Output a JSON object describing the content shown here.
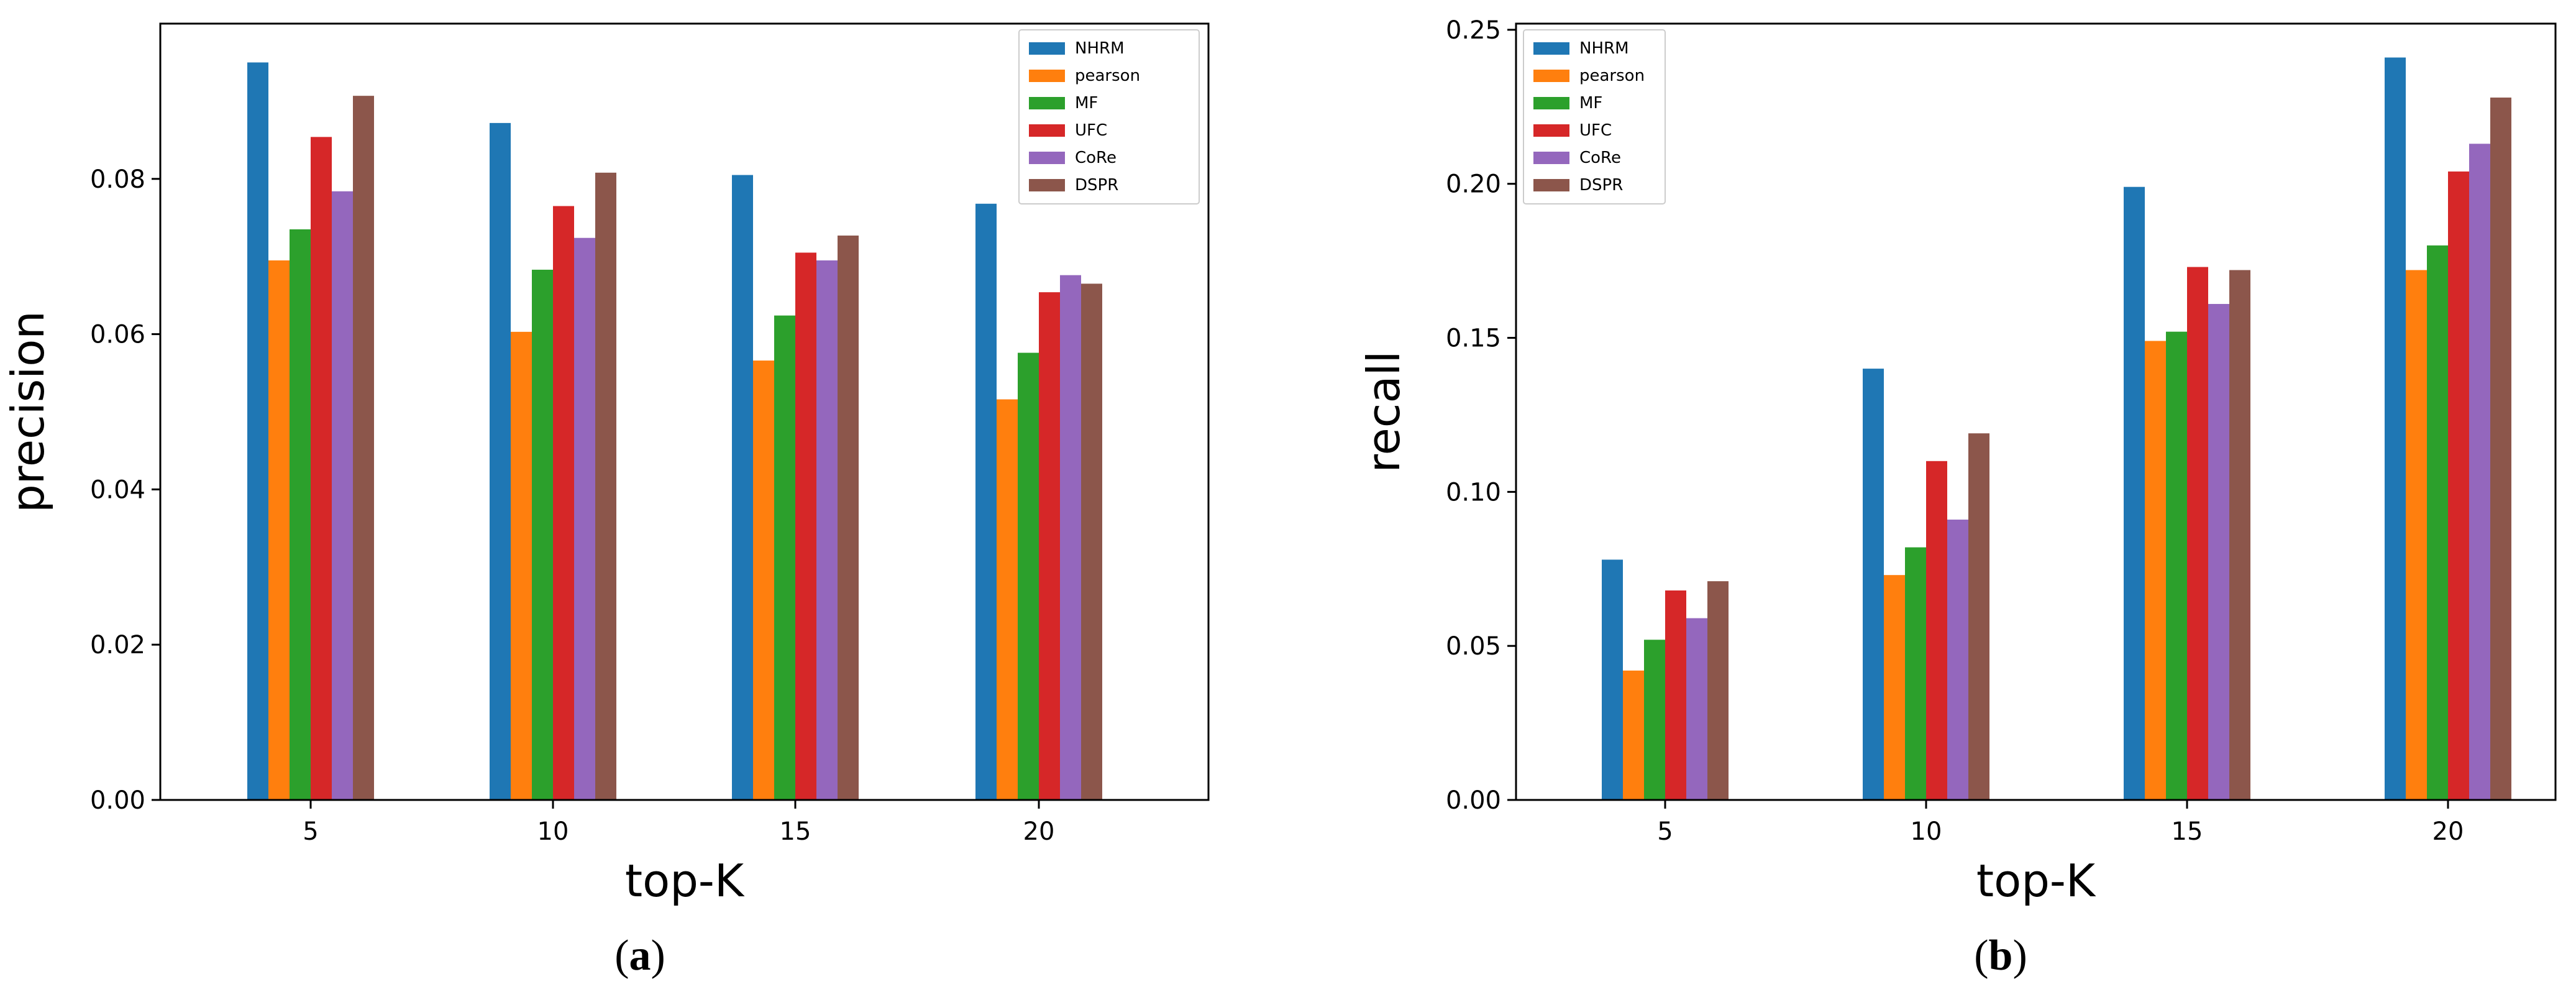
{
  "chart_data": [
    {
      "type": "bar",
      "panel": "a",
      "caption_open": "(",
      "caption_letter": "a",
      "caption_close": ")",
      "xlabel": "top-K",
      "ylabel": "precision",
      "categories": [
        "5",
        "10",
        "15",
        "20"
      ],
      "ylim": [
        0,
        0.1
      ],
      "yticks": [
        0.0,
        0.02,
        0.04,
        0.06,
        0.08
      ],
      "ytick_labels": [
        "0.00",
        "0.02",
        "0.04",
        "0.06",
        "0.08"
      ],
      "legend_position": "top-right",
      "series": [
        {
          "name": "NHRM",
          "color": "#1f77b4",
          "values": [
            0.095,
            0.0872,
            0.0805,
            0.0768
          ]
        },
        {
          "name": "pearson",
          "color": "#ff7f0e",
          "values": [
            0.0695,
            0.0603,
            0.0566,
            0.0516
          ]
        },
        {
          "name": "MF",
          "color": "#2ca02c",
          "values": [
            0.0735,
            0.0683,
            0.0624,
            0.0576
          ]
        },
        {
          "name": "UFC",
          "color": "#d62728",
          "values": [
            0.0854,
            0.0765,
            0.0705,
            0.0654
          ]
        },
        {
          "name": "CoRe",
          "color": "#9467bd",
          "values": [
            0.0784,
            0.0724,
            0.0695,
            0.0676
          ]
        },
        {
          "name": "DSPR",
          "color": "#8c564b",
          "values": [
            0.0907,
            0.0808,
            0.0727,
            0.0665
          ]
        }
      ]
    },
    {
      "type": "bar",
      "panel": "b",
      "caption_open": "(",
      "caption_letter": "b",
      "caption_close": ")",
      "xlabel": "top-K",
      "ylabel": "recall",
      "categories": [
        "5",
        "10",
        "15",
        "20"
      ],
      "ylim": [
        0,
        0.252
      ],
      "yticks": [
        0.0,
        0.05,
        0.1,
        0.15,
        0.2,
        0.25
      ],
      "ytick_labels": [
        "0.00",
        "0.05",
        "0.10",
        "0.15",
        "0.20",
        "0.25"
      ],
      "legend_position": "top-left",
      "series": [
        {
          "name": "NHRM",
          "color": "#1f77b4",
          "values": [
            0.078,
            0.14,
            0.199,
            0.241
          ]
        },
        {
          "name": "pearson",
          "color": "#ff7f0e",
          "values": [
            0.042,
            0.073,
            0.149,
            0.172
          ]
        },
        {
          "name": "MF",
          "color": "#2ca02c",
          "values": [
            0.052,
            0.082,
            0.152,
            0.18
          ]
        },
        {
          "name": "UFC",
          "color": "#d62728",
          "values": [
            0.068,
            0.11,
            0.173,
            0.204
          ]
        },
        {
          "name": "CoRe",
          "color": "#9467bd",
          "values": [
            0.059,
            0.091,
            0.161,
            0.213
          ]
        },
        {
          "name": "DSPR",
          "color": "#8c564b",
          "values": [
            0.071,
            0.119,
            0.172,
            0.228
          ]
        }
      ]
    }
  ]
}
